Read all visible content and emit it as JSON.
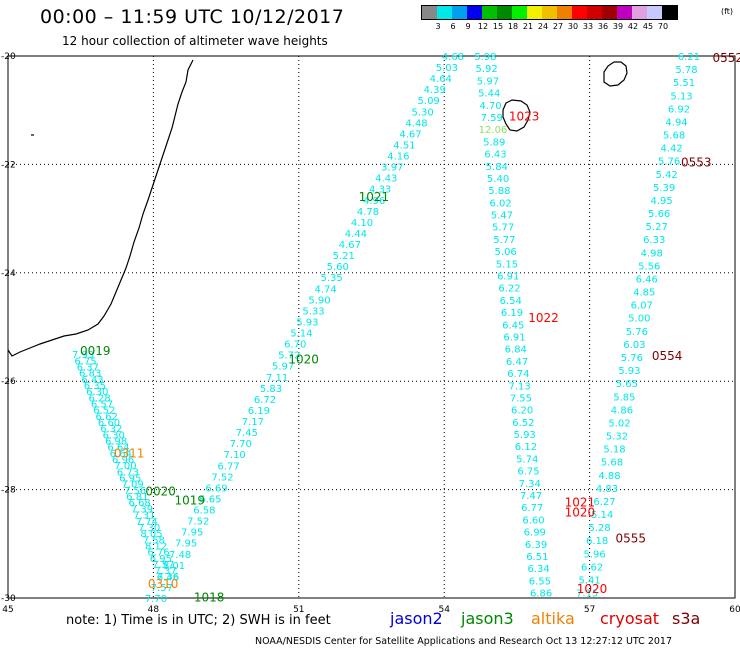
{
  "header": {
    "title": "00:00 – 11:59 UTC 10/12/2017",
    "subtitle": "12 hour collection of altimeter wave heights"
  },
  "legend": {
    "colors": [
      "#888888",
      "#00e8e8",
      "#00a0f0",
      "#0000f0",
      "#00c000",
      "#008800",
      "#00f000",
      "#f0f000",
      "#f0c000",
      "#f08000",
      "#ff0000",
      "#d00000",
      "#a00000",
      "#c000c0",
      "#e0a0e0",
      "#c8c8ff",
      "#000000"
    ],
    "labels": [
      "3",
      "6",
      "9",
      "12",
      "15",
      "18",
      "21",
      "24",
      "27",
      "30",
      "33",
      "36",
      "39",
      "42",
      "45",
      "70"
    ],
    "unit": "(ft)"
  },
  "map": {
    "lon_range": [
      45,
      60
    ],
    "lat_range": [
      -30,
      -20
    ],
    "x_ticks": [
      "45",
      "48",
      "51",
      "54",
      "57",
      "60"
    ],
    "y_ticks": [
      "-20",
      "-22",
      "-24",
      "-26",
      "-28",
      "-30"
    ]
  },
  "passes": [
    {
      "label": "1018",
      "color": "#008800",
      "lon": 49.15,
      "lat": -29.97
    },
    {
      "label": "1019",
      "color": "#008800",
      "lon": 48.75,
      "lat": -28.18
    },
    {
      "label": "1020",
      "color": "#008800",
      "lon": 51.1,
      "lat": -25.58
    },
    {
      "label": "1021",
      "color": "#008800",
      "lon": 52.55,
      "lat": -22.58
    },
    {
      "label": "0019",
      "color": "#008800",
      "lon": 46.8,
      "lat": -25.42
    },
    {
      "label": "0020",
      "color": "#008800",
      "lon": 48.15,
      "lat": -28.02
    },
    {
      "label": "0311",
      "color": "#f08000",
      "lon": 47.5,
      "lat": -27.32
    },
    {
      "label": "0310",
      "color": "#f08000",
      "lon": 48.2,
      "lat": -29.72
    },
    {
      "label": "1023",
      "color": "#ff0000",
      "lon": 55.65,
      "lat": -21.1
    },
    {
      "label": "1022",
      "color": "#ff0000",
      "lon": 56.05,
      "lat": -24.82
    },
    {
      "label": "1021",
      "color": "#ff0000",
      "lon": 56.8,
      "lat": -28.22
    },
    {
      "label": "1020",
      "color": "#ff0000",
      "lon": 56.8,
      "lat": -28.4
    },
    {
      "label": "1020",
      "color": "#ff0000",
      "lon": 57.05,
      "lat": -29.82
    },
    {
      "label": "0552",
      "color": "#800000",
      "lon": 59.85,
      "lat": -20.02
    },
    {
      "label": "0553",
      "color": "#800000",
      "lon": 59.2,
      "lat": -21.95
    },
    {
      "label": "0554",
      "color": "#800000",
      "lon": 58.6,
      "lat": -25.52
    },
    {
      "label": "0555",
      "color": "#800000",
      "lon": 57.85,
      "lat": -28.88
    }
  ],
  "tracks": [
    {
      "color": "#00e8e8",
      "start": [
        54.18,
        -20.0
      ],
      "end": [
        48.05,
        -30.0
      ],
      "values": [
        "4.68",
        "5.03",
        "4.64",
        "4.39",
        "5.09",
        "5.30",
        "4.48",
        "4.67",
        "4.51",
        "4.16",
        "3.97",
        "4.43",
        "4.33",
        "4.96",
        "4.78",
        "4.10",
        "4.44",
        "4.67",
        "5.21",
        "5.60",
        "5.35",
        "4.74",
        "5.90",
        "5.33",
        "5.93",
        "5.14",
        "6.70",
        "5.72",
        "5.97",
        "7.11",
        "5.83",
        "6.72",
        "6.19",
        "7.17",
        "7.45",
        "7.70",
        "7.10",
        "6.77",
        "7.52",
        "6.69",
        "6.65",
        "6.58",
        "7.52",
        "7.95",
        "7.95",
        "7.48",
        "8.01",
        "7.36",
        "7.57",
        "7.70"
      ]
    },
    {
      "color": "#00e8e8",
      "start": [
        46.55,
        -25.5
      ],
      "end": [
        48.3,
        -29.6
      ],
      "values": [
        "7.93",
        "6.75",
        "6.37",
        "6.83",
        "6.43",
        "6.35",
        "6.30",
        "6.28",
        "6.57",
        "6.52",
        "6.62",
        "6.60",
        "6.32",
        "6.30",
        "6.98",
        "6.64",
        "6.64",
        "6.96",
        "7.00",
        "6.73",
        "6.95",
        "7.09",
        "7.56",
        "6.81",
        "6.68",
        "7.39",
        "7.31",
        "7.74",
        "7.30",
        "8.05",
        "7.58",
        "8.12",
        "6.76",
        "6.95",
        "7.57",
        "7.37",
        "6.46"
      ]
    },
    {
      "color": "#00e8e8",
      "start": [
        54.85,
        -20.0
      ],
      "end": [
        56.0,
        -29.9
      ],
      "values": [
        "5.98",
        "5.92",
        "5.97",
        "5.44",
        "4.70",
        "7.59",
        "12.06",
        "5.89",
        "6.43",
        "5.84",
        "5.40",
        "5.88",
        "6.02",
        "5.47",
        "5.77",
        "5.77",
        "5.06",
        "5.15",
        "6.91",
        "6.22",
        "6.54",
        "6.19",
        "6.45",
        "6.91",
        "6.84",
        "6.47",
        "6.74",
        "7.13",
        "7.55",
        "6.20",
        "6.52",
        "5.93",
        "6.12",
        "5.74",
        "6.75",
        "7.34",
        "7.47",
        "6.77",
        "6.60",
        "6.99",
        "6.39",
        "6.51",
        "6.34",
        "6.55",
        "6.86"
      ]
    },
    {
      "color": "#00e8e8",
      "start": [
        59.05,
        -20.0
      ],
      "end": [
        56.95,
        -29.9
      ],
      "values": [
        "6.21",
        "5.78",
        "5.51",
        "5.13",
        "6.92",
        "4.94",
        "5.68",
        "4.42",
        "5.76",
        "5.42",
        "5.39",
        "4.95",
        "5.66",
        "5.27",
        "6.33",
        "4.98",
        "5.56",
        "6.46",
        "4.85",
        "6.07",
        "5.00",
        "5.76",
        "6.03",
        "5.76",
        "5.93",
        "5.65",
        "5.85",
        "4.86",
        "5.02",
        "5.32",
        "5.18",
        "5.68",
        "4.88",
        "4.83",
        "6.27",
        "5.14",
        "5.28",
        "6.18",
        "5.96",
        "6.62",
        "5.41",
        "7.15"
      ]
    }
  ],
  "note": "note: 1) Time is in UTC; 2) SWH is in feet",
  "satellites": [
    {
      "name": "jason2",
      "color": "#0000e0"
    },
    {
      "name": "jason3",
      "color": "#008800"
    },
    {
      "name": "altika",
      "color": "#f08000"
    },
    {
      "name": "cryosat",
      "color": "#e00000"
    },
    {
      "name": "s3a",
      "color": "#800000"
    }
  ],
  "footer": "NOAA/NESDIS Center for Satellite Applications and Research   Oct 13 12:27:12 UTC 2017"
}
